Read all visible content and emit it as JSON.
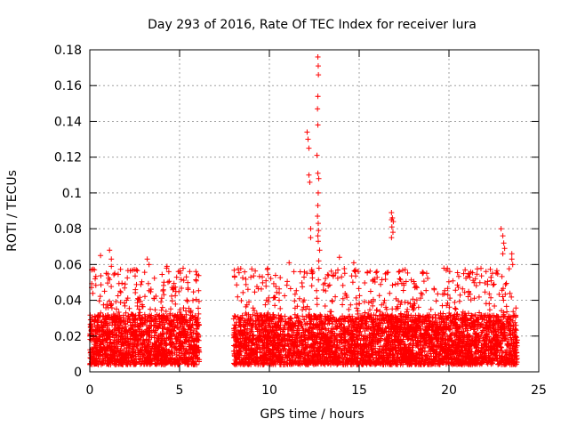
{
  "chart_data": {
    "type": "scatter",
    "title": "Day 293 of 2016, Rate Of TEC Index for receiver Iura",
    "xlabel": "GPS time / hours",
    "ylabel": "ROTI / TECUs",
    "xlim": [
      0,
      25
    ],
    "ylim": [
      0,
      0.18
    ],
    "xticks": [
      "0",
      "5",
      "10",
      "15",
      "20",
      "25"
    ],
    "yticks": [
      "0",
      "0.02",
      "0.04",
      "0.06",
      "0.08",
      "0.1",
      "0.12",
      "0.14",
      "0.16",
      "0.18"
    ],
    "grid": true,
    "marker": "+",
    "marker_color": "#ff0000",
    "band": {
      "segments": [
        [
          0.0,
          6.1
        ],
        [
          8.0,
          23.8
        ]
      ],
      "base_min": 0.004,
      "base_max": 0.032,
      "upper_max": 0.058
    },
    "points": [
      {
        "x": 0.1,
        "y": 0.057
      },
      {
        "x": 0.3,
        "y": 0.052
      },
      {
        "x": 0.6,
        "y": 0.065
      },
      {
        "x": 1.1,
        "y": 0.068
      },
      {
        "x": 1.2,
        "y": 0.063
      },
      {
        "x": 1.2,
        "y": 0.059
      },
      {
        "x": 3.2,
        "y": 0.063
      },
      {
        "x": 3.3,
        "y": 0.06
      },
      {
        "x": 4.3,
        "y": 0.059
      },
      {
        "x": 4.4,
        "y": 0.056
      },
      {
        "x": 11.1,
        "y": 0.061
      },
      {
        "x": 12.1,
        "y": 0.134
      },
      {
        "x": 12.15,
        "y": 0.13
      },
      {
        "x": 12.2,
        "y": 0.125
      },
      {
        "x": 12.2,
        "y": 0.11
      },
      {
        "x": 12.25,
        "y": 0.106
      },
      {
        "x": 12.3,
        "y": 0.08
      },
      {
        "x": 12.3,
        "y": 0.075
      },
      {
        "x": 12.7,
        "y": 0.176
      },
      {
        "x": 12.72,
        "y": 0.171
      },
      {
        "x": 12.73,
        "y": 0.166
      },
      {
        "x": 12.7,
        "y": 0.154
      },
      {
        "x": 12.68,
        "y": 0.147
      },
      {
        "x": 12.7,
        "y": 0.138
      },
      {
        "x": 12.65,
        "y": 0.121
      },
      {
        "x": 12.7,
        "y": 0.111
      },
      {
        "x": 12.75,
        "y": 0.108
      },
      {
        "x": 12.72,
        "y": 0.1
      },
      {
        "x": 12.7,
        "y": 0.093
      },
      {
        "x": 12.68,
        "y": 0.087
      },
      {
        "x": 12.72,
        "y": 0.083
      },
      {
        "x": 12.74,
        "y": 0.079
      },
      {
        "x": 12.7,
        "y": 0.076
      },
      {
        "x": 12.72,
        "y": 0.073
      },
      {
        "x": 12.8,
        "y": 0.068
      },
      {
        "x": 12.75,
        "y": 0.062
      },
      {
        "x": 13.9,
        "y": 0.064
      },
      {
        "x": 14.7,
        "y": 0.061
      },
      {
        "x": 14.8,
        "y": 0.057
      },
      {
        "x": 16.8,
        "y": 0.089
      },
      {
        "x": 16.85,
        "y": 0.086
      },
      {
        "x": 16.8,
        "y": 0.085
      },
      {
        "x": 16.9,
        "y": 0.084
      },
      {
        "x": 16.82,
        "y": 0.081
      },
      {
        "x": 16.88,
        "y": 0.078
      },
      {
        "x": 16.8,
        "y": 0.075
      },
      {
        "x": 20.9,
        "y": 0.057
      },
      {
        "x": 21.1,
        "y": 0.055
      },
      {
        "x": 22.9,
        "y": 0.08
      },
      {
        "x": 23.0,
        "y": 0.076
      },
      {
        "x": 23.05,
        "y": 0.072
      },
      {
        "x": 23.1,
        "y": 0.069
      },
      {
        "x": 23.0,
        "y": 0.066
      },
      {
        "x": 23.5,
        "y": 0.066
      },
      {
        "x": 23.5,
        "y": 0.063
      },
      {
        "x": 23.55,
        "y": 0.06
      }
    ]
  }
}
